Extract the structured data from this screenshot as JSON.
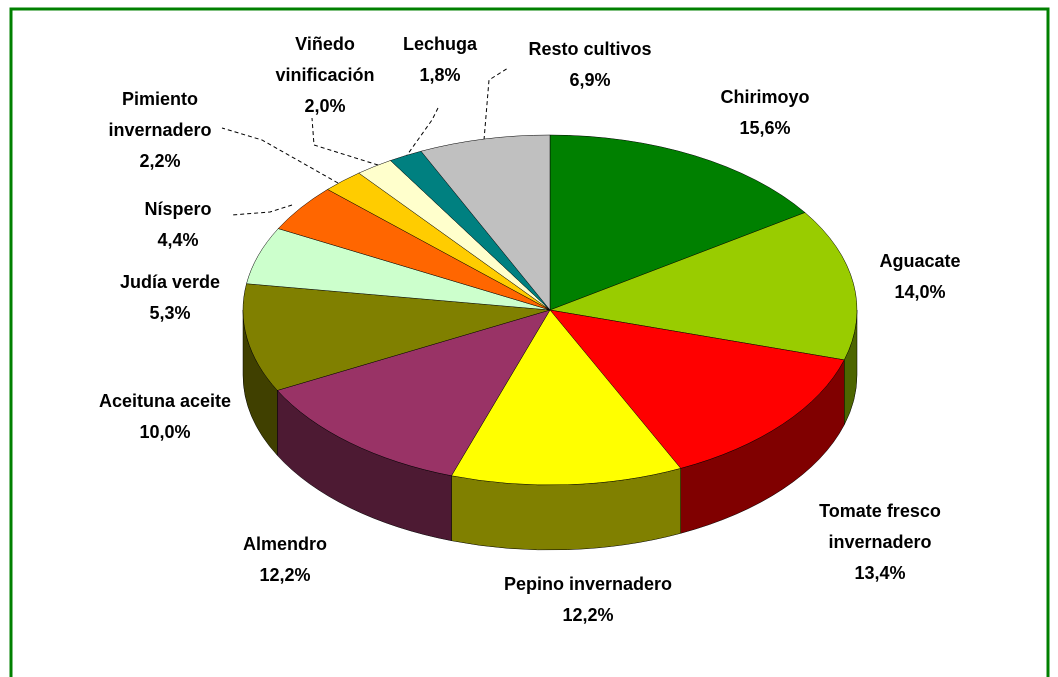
{
  "chart_data": {
    "type": "pie",
    "categories": [
      "Chirimoyo",
      "Aguacate",
      "Tomate fresco invernadero",
      "Pepino invernadero",
      "Almendro",
      "Aceituna aceite",
      "Judía verde",
      "Níspero",
      "Pimiento invernadero",
      "Viñedo vinificación",
      "Lechuga",
      "Resto cultivos"
    ],
    "values": [
      15.6,
      14.0,
      13.4,
      12.2,
      12.2,
      10.0,
      5.3,
      4.4,
      2.2,
      2.0,
      1.8,
      6.9
    ],
    "value_labels": [
      "15,6%",
      "14,0%",
      "13,4%",
      "12,2%",
      "12,2%",
      "10,0%",
      "5,3%",
      "4,4%",
      "2,2%",
      "2,0%",
      "1,8%",
      "6,9%"
    ],
    "colors": [
      "#008000",
      "#99cc00",
      "#ff0000",
      "#ffff00",
      "#993366",
      "#808000",
      "#ccffcc",
      "#ff6600",
      "#ffcc00",
      "#ffffcc",
      "#008080",
      "#c0c0c0"
    ],
    "three_d": true
  }
}
